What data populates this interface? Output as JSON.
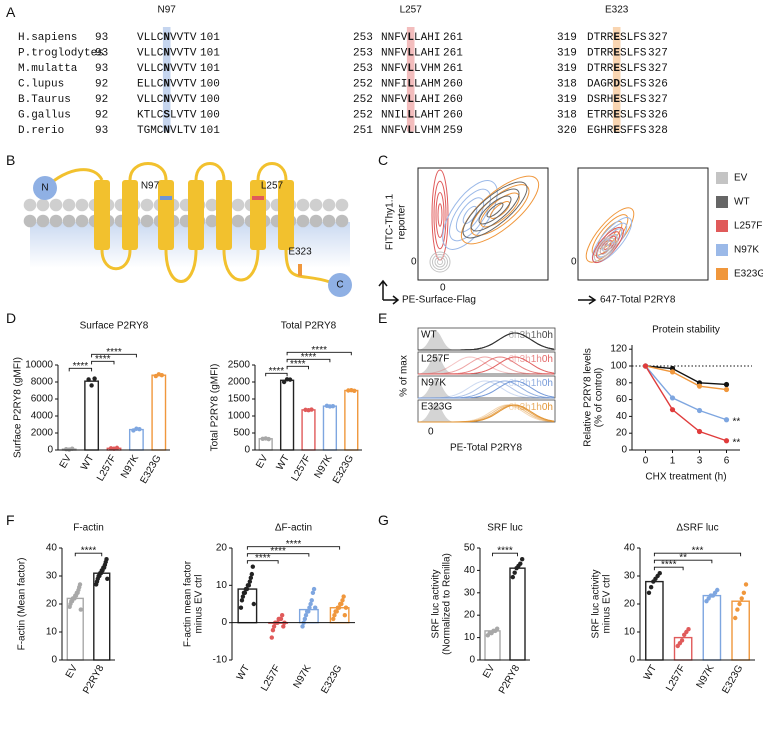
{
  "panels": [
    "A",
    "B",
    "C",
    "D",
    "E",
    "F",
    "G"
  ],
  "alignment": {
    "sites": [
      {
        "label": "N97",
        "color": "#6f95d6"
      },
      {
        "label": "L257",
        "color": "#e05a5a"
      },
      {
        "label": "E323",
        "color": "#f0973c"
      }
    ],
    "rows": [
      {
        "species": "H.sapiens",
        "blocks": [
          {
            "start": 93,
            "pre": "VLLC",
            "site": "N",
            "post": "VVTV",
            "end": 101
          },
          {
            "start": 253,
            "pre": "NNFV",
            "site": "L",
            "post": "LAHI",
            "end": 261
          },
          {
            "start": 319,
            "pre": "DTRR",
            "site": "E",
            "post": "SLFS",
            "end": 327
          }
        ]
      },
      {
        "species": "P.troglodytes",
        "blocks": [
          {
            "start": 93,
            "pre": "VLLC",
            "site": "N",
            "post": "VVTV",
            "end": 101
          },
          {
            "start": 253,
            "pre": "NNFV",
            "site": "L",
            "post": "LAHI",
            "end": 261
          },
          {
            "start": 319,
            "pre": "DTRR",
            "site": "E",
            "post": "SLFS",
            "end": 327
          }
        ]
      },
      {
        "species": "M.mulatta",
        "blocks": [
          {
            "start": 93,
            "pre": "VLLC",
            "site": "N",
            "post": "VVTV",
            "end": 101
          },
          {
            "start": 253,
            "pre": "NNFV",
            "site": "L",
            "post": "LVHM",
            "end": 261
          },
          {
            "start": 319,
            "pre": "DTRR",
            "site": "E",
            "post": "SLFS",
            "end": 327
          }
        ]
      },
      {
        "species": "C.lupus",
        "blocks": [
          {
            "start": 92,
            "pre": "ELLC",
            "site": "N",
            "post": "VVTV",
            "end": 100
          },
          {
            "start": 252,
            "pre": "NNFI",
            "site": "L",
            "post": "LAHM",
            "end": 260
          },
          {
            "start": 318,
            "pre": "DAGR",
            "site": "D",
            "post": "SLFS",
            "end": 326
          }
        ]
      },
      {
        "species": "B.Taurus",
        "blocks": [
          {
            "start": 92,
            "pre": "VLLC",
            "site": "N",
            "post": "VVTV",
            "end": 100
          },
          {
            "start": 252,
            "pre": "NNFV",
            "site": "L",
            "post": "LAHI",
            "end": 260
          },
          {
            "start": 319,
            "pre": "DSRH",
            "site": "E",
            "post": "SLFS",
            "end": 327
          }
        ]
      },
      {
        "species": "G.gallus",
        "blocks": [
          {
            "start": 92,
            "pre": "KTLC",
            "site": "S",
            "post": "LVTV",
            "end": 100
          },
          {
            "start": 252,
            "pre": "NNIL",
            "site": "L",
            "post": "LAHT",
            "end": 260
          },
          {
            "start": 318,
            "pre": "ETRR",
            "site": "E",
            "post": "SLFS",
            "end": 326
          }
        ]
      },
      {
        "species": "D.rerio",
        "blocks": [
          {
            "start": 93,
            "pre": "TGMC",
            "site": "N",
            "post": "VLTV",
            "end": 101
          },
          {
            "start": 251,
            "pre": "NNFV",
            "site": "L",
            "post": "LVHM",
            "end": 259
          },
          {
            "start": 320,
            "pre": "EGHR",
            "site": "E",
            "post": "SFFS",
            "end": 328
          }
        ]
      }
    ]
  },
  "topology": {
    "n_term": "N",
    "c_term": "C",
    "sites": [
      {
        "label": "N97",
        "color": "#6f95d6"
      },
      {
        "label": "L257",
        "color": "#e05a5a"
      },
      {
        "label": "E323",
        "color": "#f0973c"
      }
    ]
  },
  "flow": {
    "ylabel": [
      "FITC-Thy1.1",
      "reporter"
    ],
    "xlabel_left": "PE-Surface-Flag",
    "xlabel_right": "647-Total P2RY8",
    "zero_label": "0",
    "legend": [
      {
        "name": "EV",
        "color": "#c4c4c4"
      },
      {
        "name": "WT",
        "color": "#666666"
      },
      {
        "name": "L257F",
        "color": "#e05a5a"
      },
      {
        "name": "N97K",
        "color": "#9bb9e8"
      },
      {
        "name": "E323G",
        "color": "#f0973c"
      }
    ]
  },
  "histograms": {
    "ylabel": "% of max",
    "xlabel": "PE-Total P2RY8",
    "zero_label": "0",
    "times": [
      "6h",
      "3h",
      "1h",
      "0h"
    ],
    "rows": [
      {
        "name": "WT",
        "color": "#333333"
      },
      {
        "name": "L257F",
        "color": "#e05a5a"
      },
      {
        "name": "N97K",
        "color": "#6f95d6"
      },
      {
        "name": "E323G",
        "color": "#e0902c"
      }
    ]
  },
  "chart_data": [
    {
      "type": "bar",
      "title": "Surface P2RY8",
      "ylabel": "Surface P2RY8 (gMFI)",
      "categories": [
        "EV",
        "WT",
        "L257F",
        "N97K",
        "E323G"
      ],
      "values": [
        100,
        8100,
        200,
        2400,
        8800
      ],
      "points": [
        [
          100,
          50,
          150
        ],
        [
          8300,
          7600,
          8400
        ],
        [
          200,
          150,
          250
        ],
        [
          2300,
          2500,
          2450
        ],
        [
          8700,
          8900,
          8800
        ]
      ],
      "colors": [
        "#a8a8a8",
        "#222222",
        "#e05a5a",
        "#7ea6e0",
        "#f0973c"
      ],
      "ylim": [
        0,
        10000
      ],
      "yticks": [
        0,
        2000,
        4000,
        6000,
        8000,
        10000
      ],
      "comparisons": [
        {
          "between": [
            "EV",
            "WT"
          ],
          "label": "****"
        },
        {
          "between": [
            "WT",
            "L257F"
          ],
          "label": "****"
        },
        {
          "between": [
            "WT",
            "N97K"
          ],
          "label": "****"
        }
      ]
    },
    {
      "type": "bar",
      "title": "Total P2RY8",
      "ylabel": "Total P2RY8 (gMFI)",
      "categories": [
        "EV",
        "WT",
        "L257F",
        "N97K",
        "E323G"
      ],
      "values": [
        330,
        2050,
        1180,
        1290,
        1750
      ],
      "points": [
        [
          330,
          340,
          320
        ],
        [
          2000,
          2080,
          2070
        ],
        [
          1180,
          1170,
          1190
        ],
        [
          1300,
          1280,
          1290
        ],
        [
          1750,
          1760,
          1740
        ]
      ],
      "colors": [
        "#a8a8a8",
        "#222222",
        "#e05a5a",
        "#7ea6e0",
        "#f0973c"
      ],
      "ylim": [
        0,
        2500
      ],
      "yticks": [
        0,
        500,
        1000,
        1500,
        2000,
        2500
      ],
      "comparisons": [
        {
          "between": [
            "EV",
            "WT"
          ],
          "label": "****"
        },
        {
          "between": [
            "WT",
            "L257F"
          ],
          "label": "****"
        },
        {
          "between": [
            "WT",
            "N97K"
          ],
          "label": "****"
        },
        {
          "between": [
            "WT",
            "E323G"
          ],
          "label": "****"
        }
      ]
    },
    {
      "type": "line",
      "title": "Protein stability",
      "ylabel": [
        "Relative P2RY8 levels",
        "(% of control)"
      ],
      "xlabel": "CHX treatment (h)",
      "categories": [
        "0",
        "1",
        "3",
        "6"
      ],
      "series": [
        {
          "color": "#111111",
          "values": [
            100,
            97,
            80,
            78
          ]
        },
        {
          "color": "#f0973c",
          "values": [
            100,
            93,
            76,
            72
          ]
        },
        {
          "color": "#7ea6e0",
          "values": [
            100,
            62,
            47,
            36
          ],
          "annotation": "**"
        },
        {
          "color": "#e03c3c",
          "values": [
            100,
            48,
            22,
            11
          ],
          "annotation": "**"
        }
      ],
      "hline": 100,
      "ylim": [
        0,
        125
      ],
      "yticks": [
        0,
        20,
        40,
        60,
        80,
        100,
        120
      ]
    },
    {
      "type": "bar",
      "title": "F-actin",
      "ylabel": "F-actin (Mean factor)",
      "categories": [
        "EV",
        "P2RY8"
      ],
      "values": [
        22,
        31
      ],
      "points": [
        [
          19,
          20,
          21,
          21,
          22,
          22,
          22,
          23,
          23,
          24,
          24,
          25,
          26,
          27,
          18
        ],
        [
          27,
          28,
          29,
          30,
          30,
          31,
          31,
          32,
          32,
          33,
          33,
          34,
          35,
          36,
          29
        ]
      ],
      "colors": [
        "#a8a8a8",
        "#222222"
      ],
      "ylim": [
        0,
        40
      ],
      "yticks": [
        0,
        10,
        20,
        30,
        40
      ],
      "comparisons": [
        {
          "between": [
            "EV",
            "P2RY8"
          ],
          "label": "****"
        }
      ]
    },
    {
      "type": "bar",
      "title": "ΔF-actin",
      "ylabel": [
        "F-actin mean factor",
        "minus EV ctrl"
      ],
      "categories": [
        "WT",
        "L257F",
        "N97K",
        "E323G"
      ],
      "values": [
        9,
        0,
        3.5,
        4
      ],
      "points": [
        [
          4,
          6,
          7,
          8,
          8,
          9,
          9,
          10,
          10,
          11,
          12,
          13,
          15,
          5
        ],
        [
          -4,
          -2,
          -1,
          0,
          0,
          0,
          1,
          1,
          1,
          2,
          -1,
          0
        ],
        [
          -1,
          0,
          1,
          2,
          3,
          3,
          4,
          5,
          6,
          8,
          9,
          4
        ],
        [
          1,
          2,
          3,
          3,
          4,
          4,
          5,
          5,
          6,
          7,
          2,
          4
        ]
      ],
      "colors": [
        "#222222",
        "#e05a5a",
        "#7ea6e0",
        "#f0973c"
      ],
      "ylim": [
        -10,
        20
      ],
      "yticks": [
        -10,
        0,
        10,
        20
      ],
      "comparisons": [
        {
          "between": [
            "WT",
            "L257F"
          ],
          "label": "****"
        },
        {
          "between": [
            "WT",
            "N97K"
          ],
          "label": "****"
        },
        {
          "between": [
            "WT",
            "E323G"
          ],
          "label": "****"
        }
      ]
    },
    {
      "type": "bar",
      "title": "SRF luc",
      "ylabel": [
        "SRF luc activity",
        "(Normalized to Renilla)"
      ],
      "categories": [
        "EV",
        "P2RY8"
      ],
      "values": [
        13,
        41
      ],
      "points": [
        [
          11,
          12,
          12,
          13,
          13,
          14
        ],
        [
          37,
          39,
          41,
          42,
          43,
          45
        ]
      ],
      "colors": [
        "#a8a8a8",
        "#222222"
      ],
      "ylim": [
        0,
        50
      ],
      "yticks": [
        0,
        10,
        20,
        30,
        40,
        50
      ],
      "comparisons": [
        {
          "between": [
            "EV",
            "P2RY8"
          ],
          "label": "****"
        }
      ]
    },
    {
      "type": "bar",
      "title": "ΔSRF luc",
      "ylabel": [
        "SRF luc activity",
        "minus EV ctrl"
      ],
      "categories": [
        "WT",
        "L257F",
        "N97K",
        "E323G"
      ],
      "values": [
        28,
        8,
        23,
        21
      ],
      "points": [
        [
          24,
          26,
          28,
          29,
          30,
          31
        ],
        [
          5,
          6,
          7,
          9,
          10,
          11
        ],
        [
          21,
          22,
          23,
          23,
          24,
          25
        ],
        [
          15,
          18,
          20,
          22,
          24,
          27
        ]
      ],
      "colors": [
        "#222222",
        "#e05a5a",
        "#7ea6e0",
        "#f0973c"
      ],
      "ylim": [
        0,
        40
      ],
      "yticks": [
        0,
        10,
        20,
        30,
        40
      ],
      "comparisons": [
        {
          "between": [
            "WT",
            "L257F"
          ],
          "label": "****"
        },
        {
          "between": [
            "WT",
            "N97K"
          ],
          "label": "**"
        },
        {
          "between": [
            "WT",
            "E323G"
          ],
          "label": "***"
        }
      ]
    }
  ]
}
